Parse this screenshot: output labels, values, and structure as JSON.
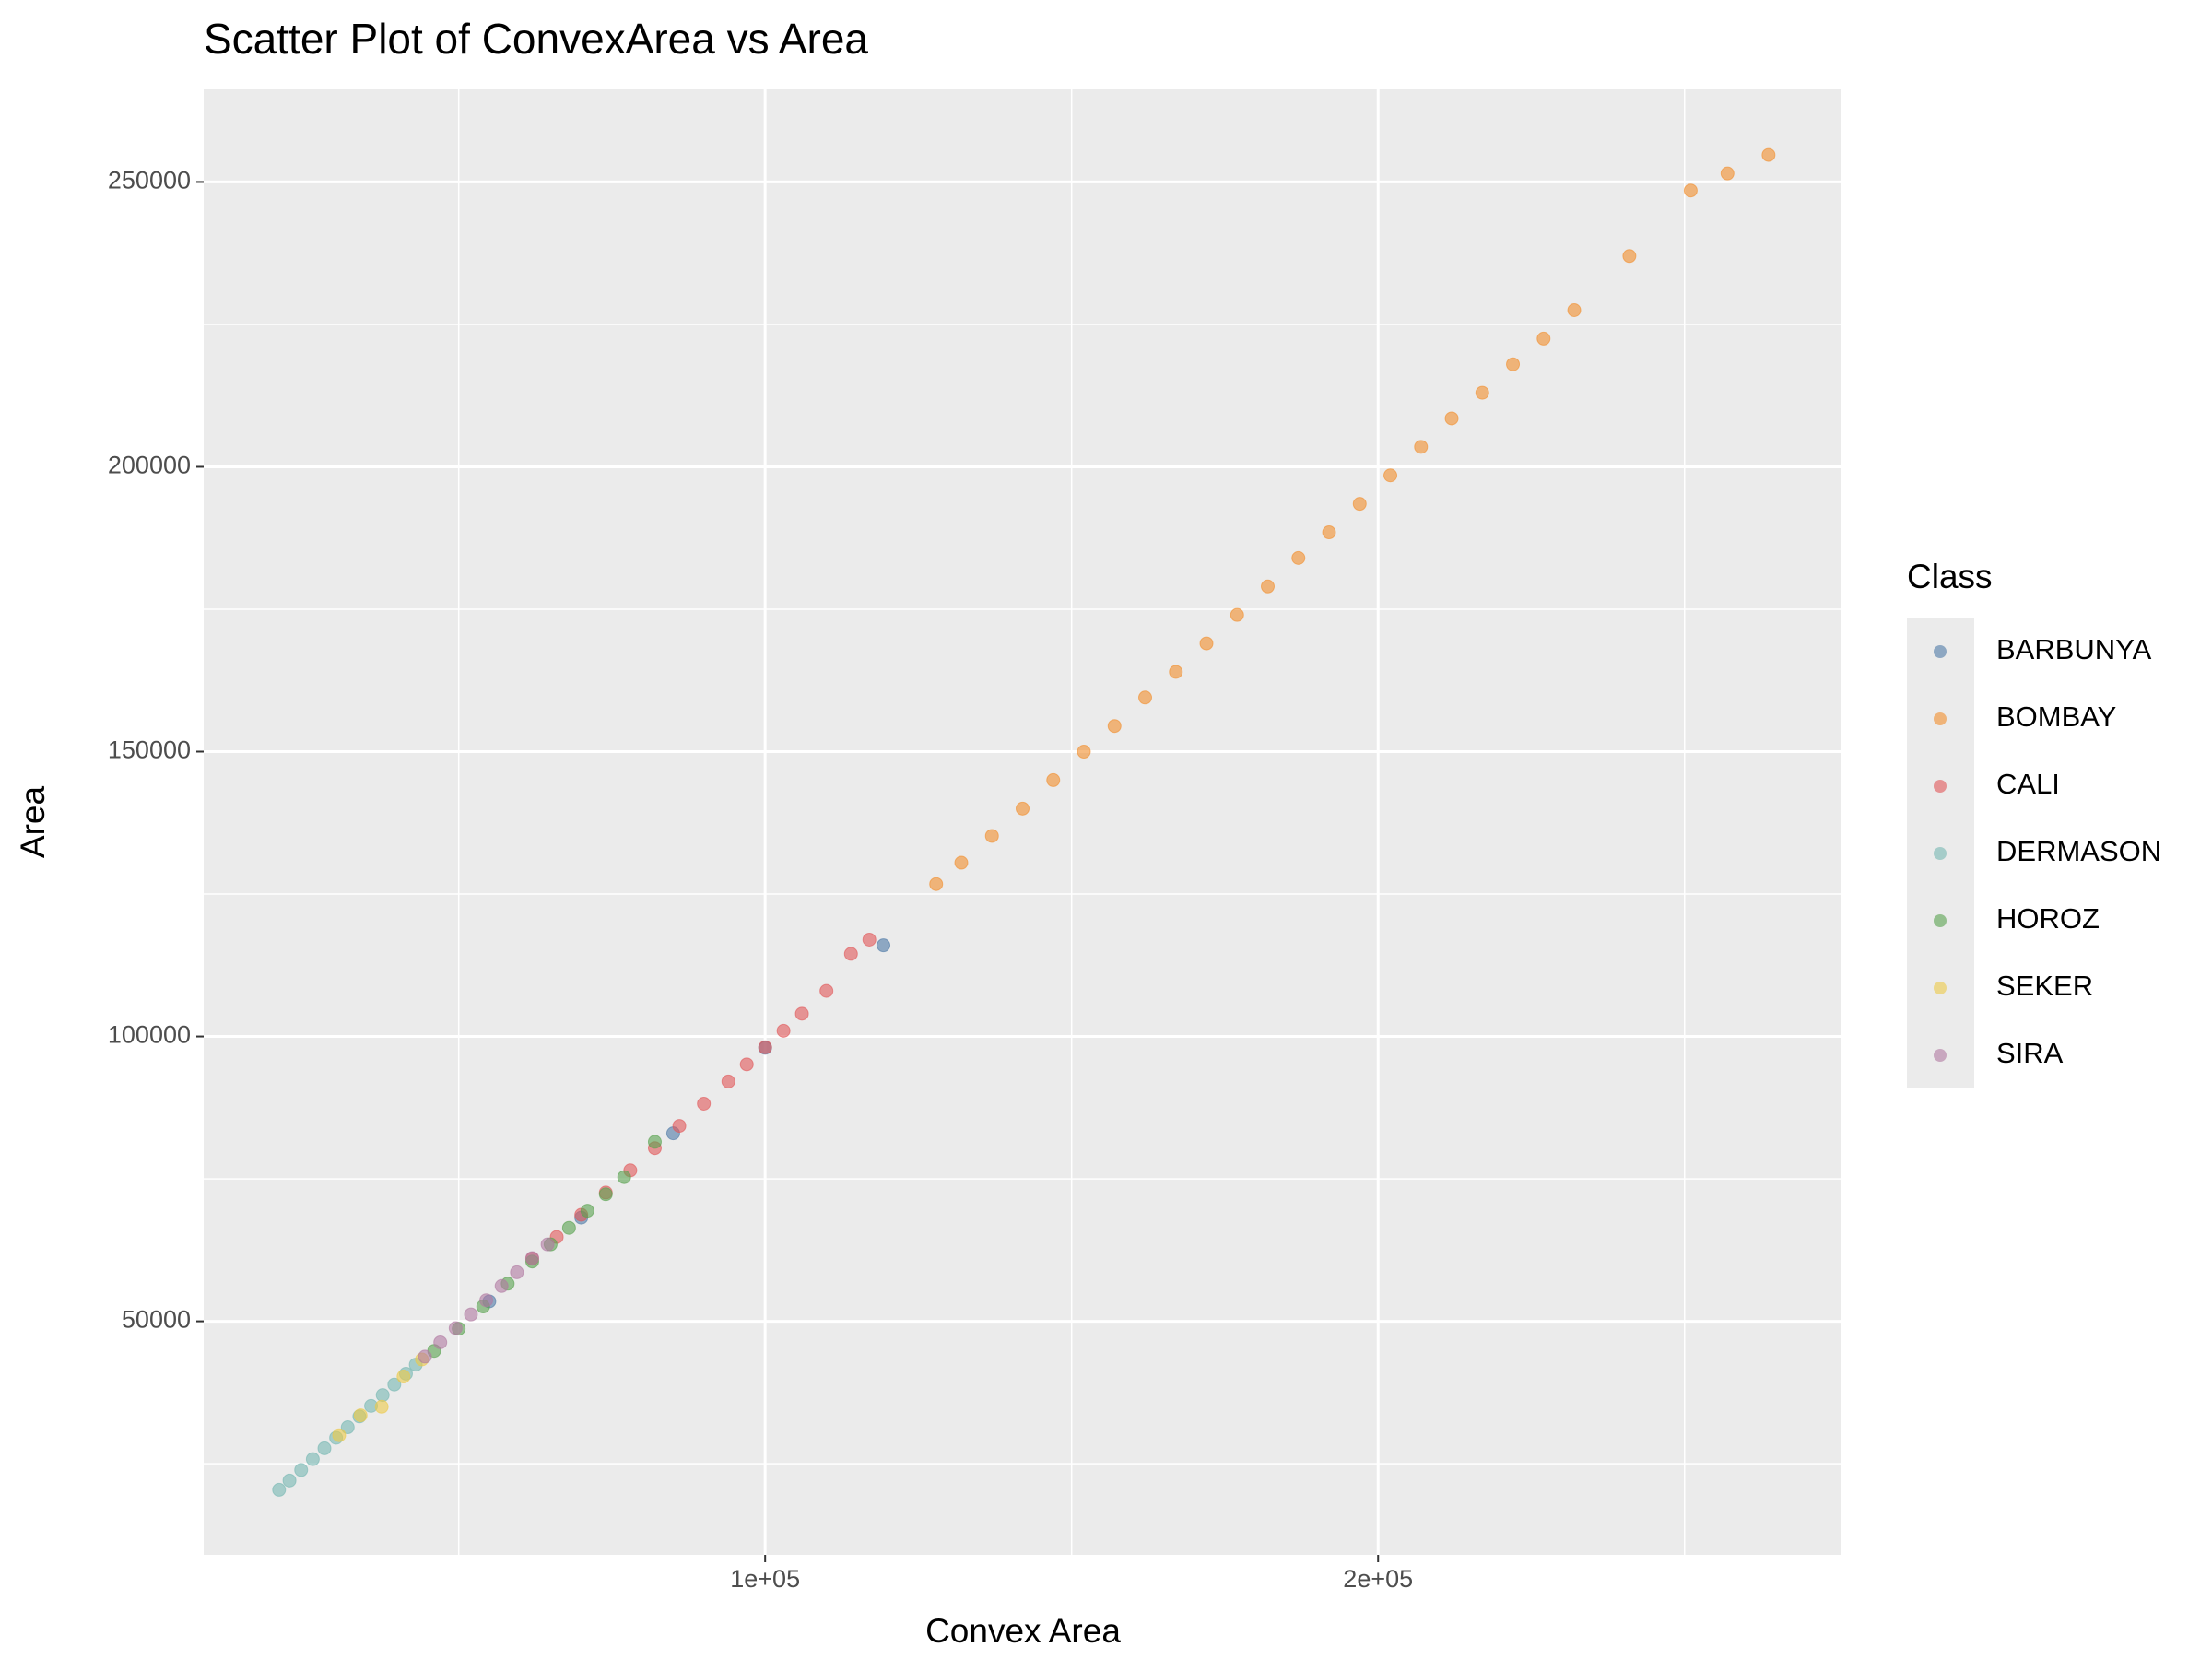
{
  "chart_data": {
    "type": "scatter",
    "title": "Scatter Plot of ConvexArea vs Area",
    "x_label": "Convex Area",
    "y_label": "Area",
    "legend_title": "Class",
    "legend": "right",
    "xlim": [
      8400,
      275600
    ],
    "ylim": [
      9000,
      266250
    ],
    "xticks": [
      {
        "value": 100000,
        "label": "1e+05"
      },
      {
        "value": 200000,
        "label": "2e+05"
      }
    ],
    "xminor": [
      50000,
      150000,
      250000
    ],
    "yticks": [
      50000,
      100000,
      150000,
      200000,
      250000
    ],
    "yminor": [
      25000,
      75000,
      125000,
      175000,
      225000
    ],
    "grid": true,
    "series": [
      {
        "name": "BARBUNYA",
        "color": "#4E79A7",
        "x": [
          55000,
          70000,
          85000,
          100000,
          119300
        ],
        "values": [
          53500,
          68200,
          83000,
          98000,
          116000
        ]
      },
      {
        "name": "BOMBAY",
        "color": "#F28E2B",
        "x": [
          127900,
          132000,
          137000,
          142000,
          147000,
          152000,
          157000,
          162000,
          167000,
          172000,
          177000,
          182000,
          187000,
          192000,
          197000,
          202000,
          207000,
          212000,
          217000,
          222000,
          227000,
          232000,
          241000,
          251000,
          257000,
          263700
        ],
        "values": [
          126750,
          130500,
          135200,
          140000,
          145000,
          150000,
          154500,
          159500,
          164000,
          169000,
          174000,
          179000,
          184000,
          188500,
          193500,
          198500,
          203500,
          208500,
          213000,
          218000,
          222500,
          227500,
          237000,
          248500,
          251500,
          254750
        ]
      },
      {
        "name": "CALI",
        "color": "#E15759",
        "x": [
          62000,
          66000,
          70000,
          74000,
          78000,
          82000,
          86000,
          90000,
          94000,
          97000,
          100000,
          103000,
          106000,
          110000,
          114000,
          117000
        ],
        "values": [
          61000,
          64800,
          68700,
          72600,
          76500,
          80400,
          84300,
          88200,
          92100,
          95100,
          98100,
          101000,
          104000,
          108000,
          114500,
          117000
        ]
      },
      {
        "name": "DERMASON",
        "color": "#76B7B2",
        "x": [
          20700,
          22400,
          24300,
          26200,
          28100,
          30000,
          31900,
          33800,
          35700,
          37600,
          39500,
          41400,
          43000
        ],
        "values": [
          20420,
          22050,
          23900,
          25800,
          27700,
          29550,
          31400,
          33300,
          35150,
          37050,
          38900,
          40800,
          42400
        ]
      },
      {
        "name": "HOROZ",
        "color": "#59A14F",
        "x": [
          46000,
          50000,
          54000,
          58000,
          62000,
          65000,
          68000,
          71000,
          74000,
          77000,
          82000
        ],
        "values": [
          44800,
          48700,
          52600,
          56600,
          60500,
          63500,
          66400,
          69400,
          72300,
          75300,
          81500
        ]
      },
      {
        "name": "SEKER",
        "color": "#EDC948",
        "x": [
          30500,
          34000,
          37442,
          41000,
          44000
        ],
        "values": [
          30000,
          33500,
          35000,
          40300,
          43300
        ]
      },
      {
        "name": "SIRA",
        "color": "#B07AA1",
        "x": [
          44500,
          47000,
          49500,
          52000,
          54500,
          57000,
          59500,
          62000,
          64500
        ],
        "values": [
          43800,
          46300,
          48800,
          51200,
          53700,
          56200,
          58600,
          61100,
          63500
        ]
      }
    ]
  }
}
